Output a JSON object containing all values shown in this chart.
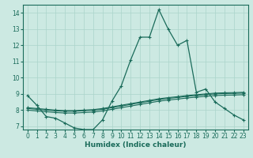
{
  "xlabel": "Humidex (Indice chaleur)",
  "xlim": [
    -0.5,
    23.5
  ],
  "ylim": [
    6.8,
    14.5
  ],
  "x_ticks": [
    0,
    1,
    2,
    3,
    4,
    5,
    6,
    7,
    8,
    9,
    10,
    11,
    12,
    13,
    14,
    15,
    16,
    17,
    18,
    19,
    20,
    21,
    22,
    23
  ],
  "y_ticks": [
    7,
    8,
    9,
    10,
    11,
    12,
    13,
    14
  ],
  "background_color": "#cce9e2",
  "grid_color": "#aad4cb",
  "line_color": "#1a6b5a",
  "curves": {
    "line_main": {
      "x": [
        0,
        1,
        2,
        3,
        4,
        5,
        6,
        7,
        8,
        9,
        10,
        11,
        12,
        13,
        14,
        15,
        16,
        17,
        18,
        19,
        20,
        21,
        22,
        23
      ],
      "y": [
        8.9,
        8.3,
        7.6,
        7.5,
        7.2,
        6.9,
        6.8,
        6.8,
        7.4,
        8.55,
        9.5,
        11.1,
        12.5,
        12.5,
        14.2,
        13.0,
        12.0,
        12.3,
        9.1,
        9.3,
        8.5,
        8.1,
        7.7,
        7.4
      ]
    },
    "line_flat1": {
      "x": [
        0,
        1,
        2,
        3,
        4,
        5,
        6,
        7,
        8,
        9,
        10,
        11,
        12,
        13,
        14,
        15,
        16,
        17,
        18,
        19,
        20,
        21,
        22,
        23
      ],
      "y": [
        8.0,
        7.95,
        7.9,
        7.85,
        7.82,
        7.82,
        7.85,
        7.88,
        7.95,
        8.05,
        8.15,
        8.25,
        8.35,
        8.45,
        8.55,
        8.62,
        8.68,
        8.75,
        8.8,
        8.85,
        8.9,
        8.92,
        8.93,
        8.95
      ]
    },
    "line_flat2": {
      "x": [
        0,
        1,
        2,
        3,
        4,
        5,
        6,
        7,
        8,
        9,
        10,
        11,
        12,
        13,
        14,
        15,
        16,
        17,
        18,
        19,
        20,
        21,
        22,
        23
      ],
      "y": [
        8.1,
        8.05,
        8.0,
        7.95,
        7.93,
        7.93,
        7.96,
        7.99,
        8.05,
        8.15,
        8.25,
        8.35,
        8.45,
        8.55,
        8.65,
        8.72,
        8.78,
        8.85,
        8.9,
        8.95,
        9.0,
        9.02,
        9.03,
        9.05
      ]
    },
    "line_flat3": {
      "x": [
        0,
        1,
        2,
        3,
        4,
        5,
        6,
        7,
        8,
        9,
        10,
        11,
        12,
        13,
        14,
        15,
        16,
        17,
        18,
        19,
        20,
        21,
        22,
        23
      ],
      "y": [
        8.15,
        8.1,
        8.05,
        8.0,
        7.97,
        7.97,
        8.0,
        8.03,
        8.1,
        8.2,
        8.3,
        8.4,
        8.5,
        8.6,
        8.7,
        8.77,
        8.83,
        8.9,
        8.95,
        9.0,
        9.05,
        9.07,
        9.08,
        9.1
      ]
    }
  }
}
